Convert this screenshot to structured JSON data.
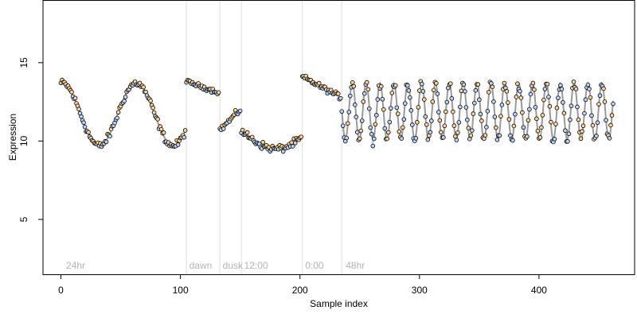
{
  "chart_data": {
    "type": "scatter",
    "title": "",
    "xlabel": "Sample index",
    "ylabel": "Expression",
    "xlim": [
      -15,
      480
    ],
    "ylim": [
      1.5,
      19
    ],
    "x_ticks": [
      0,
      100,
      200,
      300,
      400
    ],
    "y_ticks": [
      5,
      10,
      15
    ],
    "grid": false,
    "legend": "none",
    "region_dividers": [
      105,
      133,
      151,
      202,
      235
    ],
    "region_labels": [
      {
        "text": "24hr",
        "x": 3
      },
      {
        "text": "dawn",
        "x": 106
      },
      {
        "text": "dusk",
        "x": 134
      },
      {
        "text": "12:00",
        "x": 152
      },
      {
        "text": "0:00",
        "x": 203
      },
      {
        "text": "48hr",
        "x": 237
      }
    ],
    "segments": [
      {
        "name": "24hr",
        "x_start": 0,
        "x_end": 104,
        "model": "sine",
        "period": 62,
        "center": 11.7,
        "amplitude": 2.0,
        "phase_min_x": 32,
        "scatter": 0.35
      },
      {
        "name": "dawn",
        "x_start": 105,
        "x_end": 132,
        "model": "linear",
        "y_start": 13.8,
        "y_end": 13.1,
        "scatter": 0.2
      },
      {
        "name": "dusk",
        "x_start": 133,
        "x_end": 150,
        "model": "linear",
        "y_start": 10.7,
        "y_end": 12.0,
        "scatter": 0.3
      },
      {
        "name": "12:00",
        "x_start": 151,
        "x_end": 201,
        "model": "sine",
        "period": 100,
        "center": 10.4,
        "amplitude": 0.9,
        "phase_min_x": 180,
        "scatter": 0.35
      },
      {
        "name": "0:00",
        "x_start": 202,
        "x_end": 234,
        "model": "linear",
        "y_start": 14.1,
        "y_end": 12.8,
        "scatter": 0.25
      },
      {
        "name": "48hr",
        "x_start": 235,
        "x_end": 462,
        "model": "sine",
        "period": 11.6,
        "center": 11.9,
        "amplitude": 1.8,
        "phase_min_x": 238,
        "scatter": 0.45
      }
    ],
    "colors": {
      "fit_line": "#9a9a9a",
      "residual_above": "#f2a33a",
      "residual_below": "#5b8fd6",
      "point_fill_above": "#f7d29a",
      "point_fill_below": "#bcd2f2",
      "divider": "#dddddd",
      "axis": "#000000"
    }
  }
}
